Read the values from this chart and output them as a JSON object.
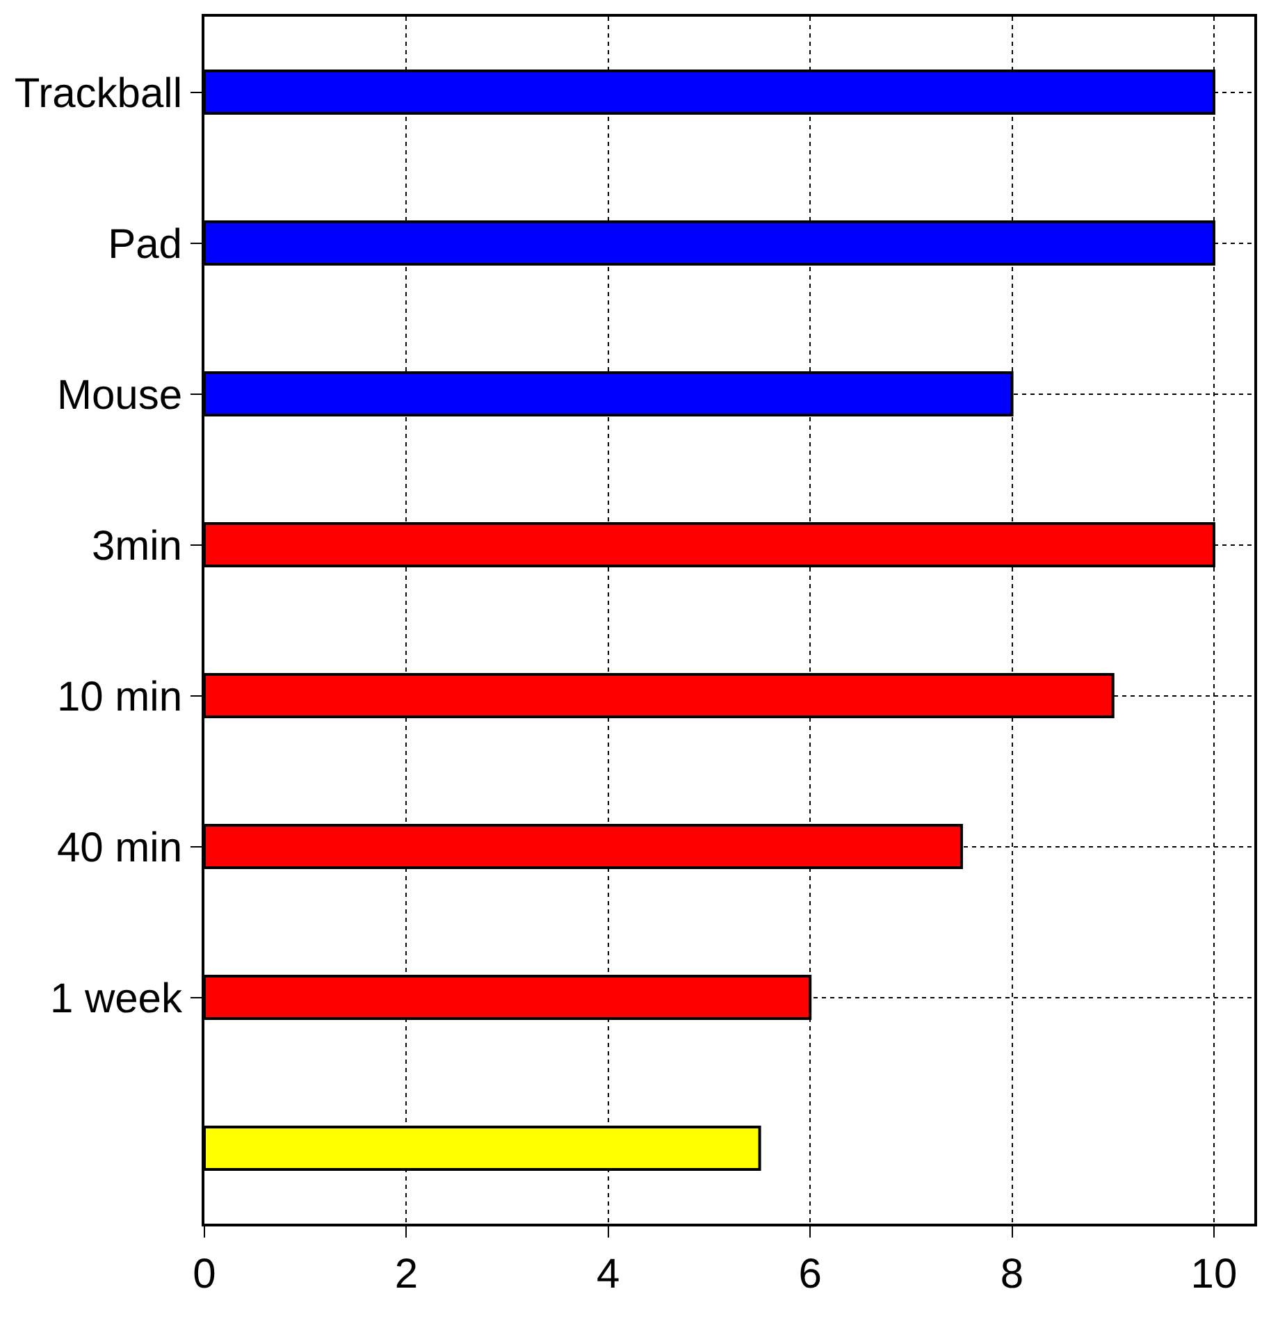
{
  "chart_data": {
    "type": "bar",
    "orientation": "horizontal",
    "categories": [
      "Trackball",
      "Pad",
      "Mouse",
      "3min",
      "10 min",
      "40 min",
      "1 week",
      null
    ],
    "values": [
      10,
      10,
      8,
      10,
      9,
      7.5,
      6,
      5.5
    ],
    "colors": [
      "#0000ff",
      "#0000ff",
      "#0000ff",
      "#ff0000",
      "#ff0000",
      "#ff0000",
      "#ff0000",
      "#ffff00"
    ],
    "xlim": [
      0,
      10.4
    ],
    "xticks": [
      0,
      2,
      4,
      6,
      8,
      10
    ],
    "grid": true,
    "line_style": "dotted"
  }
}
